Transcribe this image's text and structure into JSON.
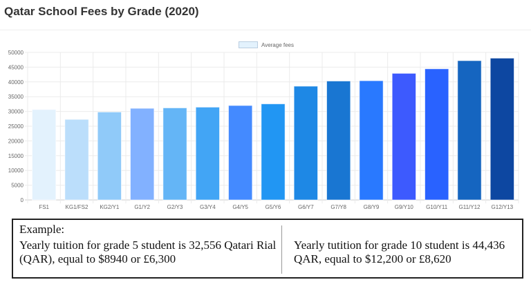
{
  "chart_data": {
    "type": "bar",
    "title": "Qatar School Fees by Grade (2020)",
    "categories": [
      "FS1",
      "KG1/FS2",
      "KG2/Y1",
      "G1/Y2",
      "G2/Y3",
      "G3/Y4",
      "G4/Y5",
      "G5/Y6",
      "G6/Y7",
      "G7/Y8",
      "G8/Y9",
      "G9/Y10",
      "G10/Y11",
      "G11/Y12",
      "G12/Y13"
    ],
    "series": [
      {
        "name": "Average fees",
        "values": [
          30650,
          27300,
          29800,
          31050,
          31200,
          31450,
          32000,
          32556,
          38550,
          40300,
          40400,
          42900,
          44436,
          47200,
          48050
        ]
      }
    ],
    "colors": [
      "#E3F2FD",
      "#BBDEFB",
      "#90CAF9",
      "#82B1FF",
      "#64B5F6",
      "#42A5F5",
      "#448AFF",
      "#2196F3",
      "#1E88E5",
      "#1976D2",
      "#2979FF",
      "#3D5AFE",
      "#2962FF",
      "#1565C0",
      "#0D47A1"
    ],
    "ylim": [
      0,
      50000
    ],
    "yticks": [
      "0",
      "5000",
      "10000",
      "15000",
      "20000",
      "25000",
      "30000",
      "35000",
      "40000",
      "45000",
      "50000"
    ],
    "grid": true,
    "legend": "top-center",
    "xlabel": "",
    "ylabel": ""
  },
  "example": {
    "heading": "Example:",
    "left": "Yearly tuition for grade 5 student is 32,556 Qatari Rial (QAR), equal to $8940 or £6,300",
    "right": "Yearly tutition for grade 10 student is 44,436 QAR, equal to $12,200 or £8,620"
  }
}
